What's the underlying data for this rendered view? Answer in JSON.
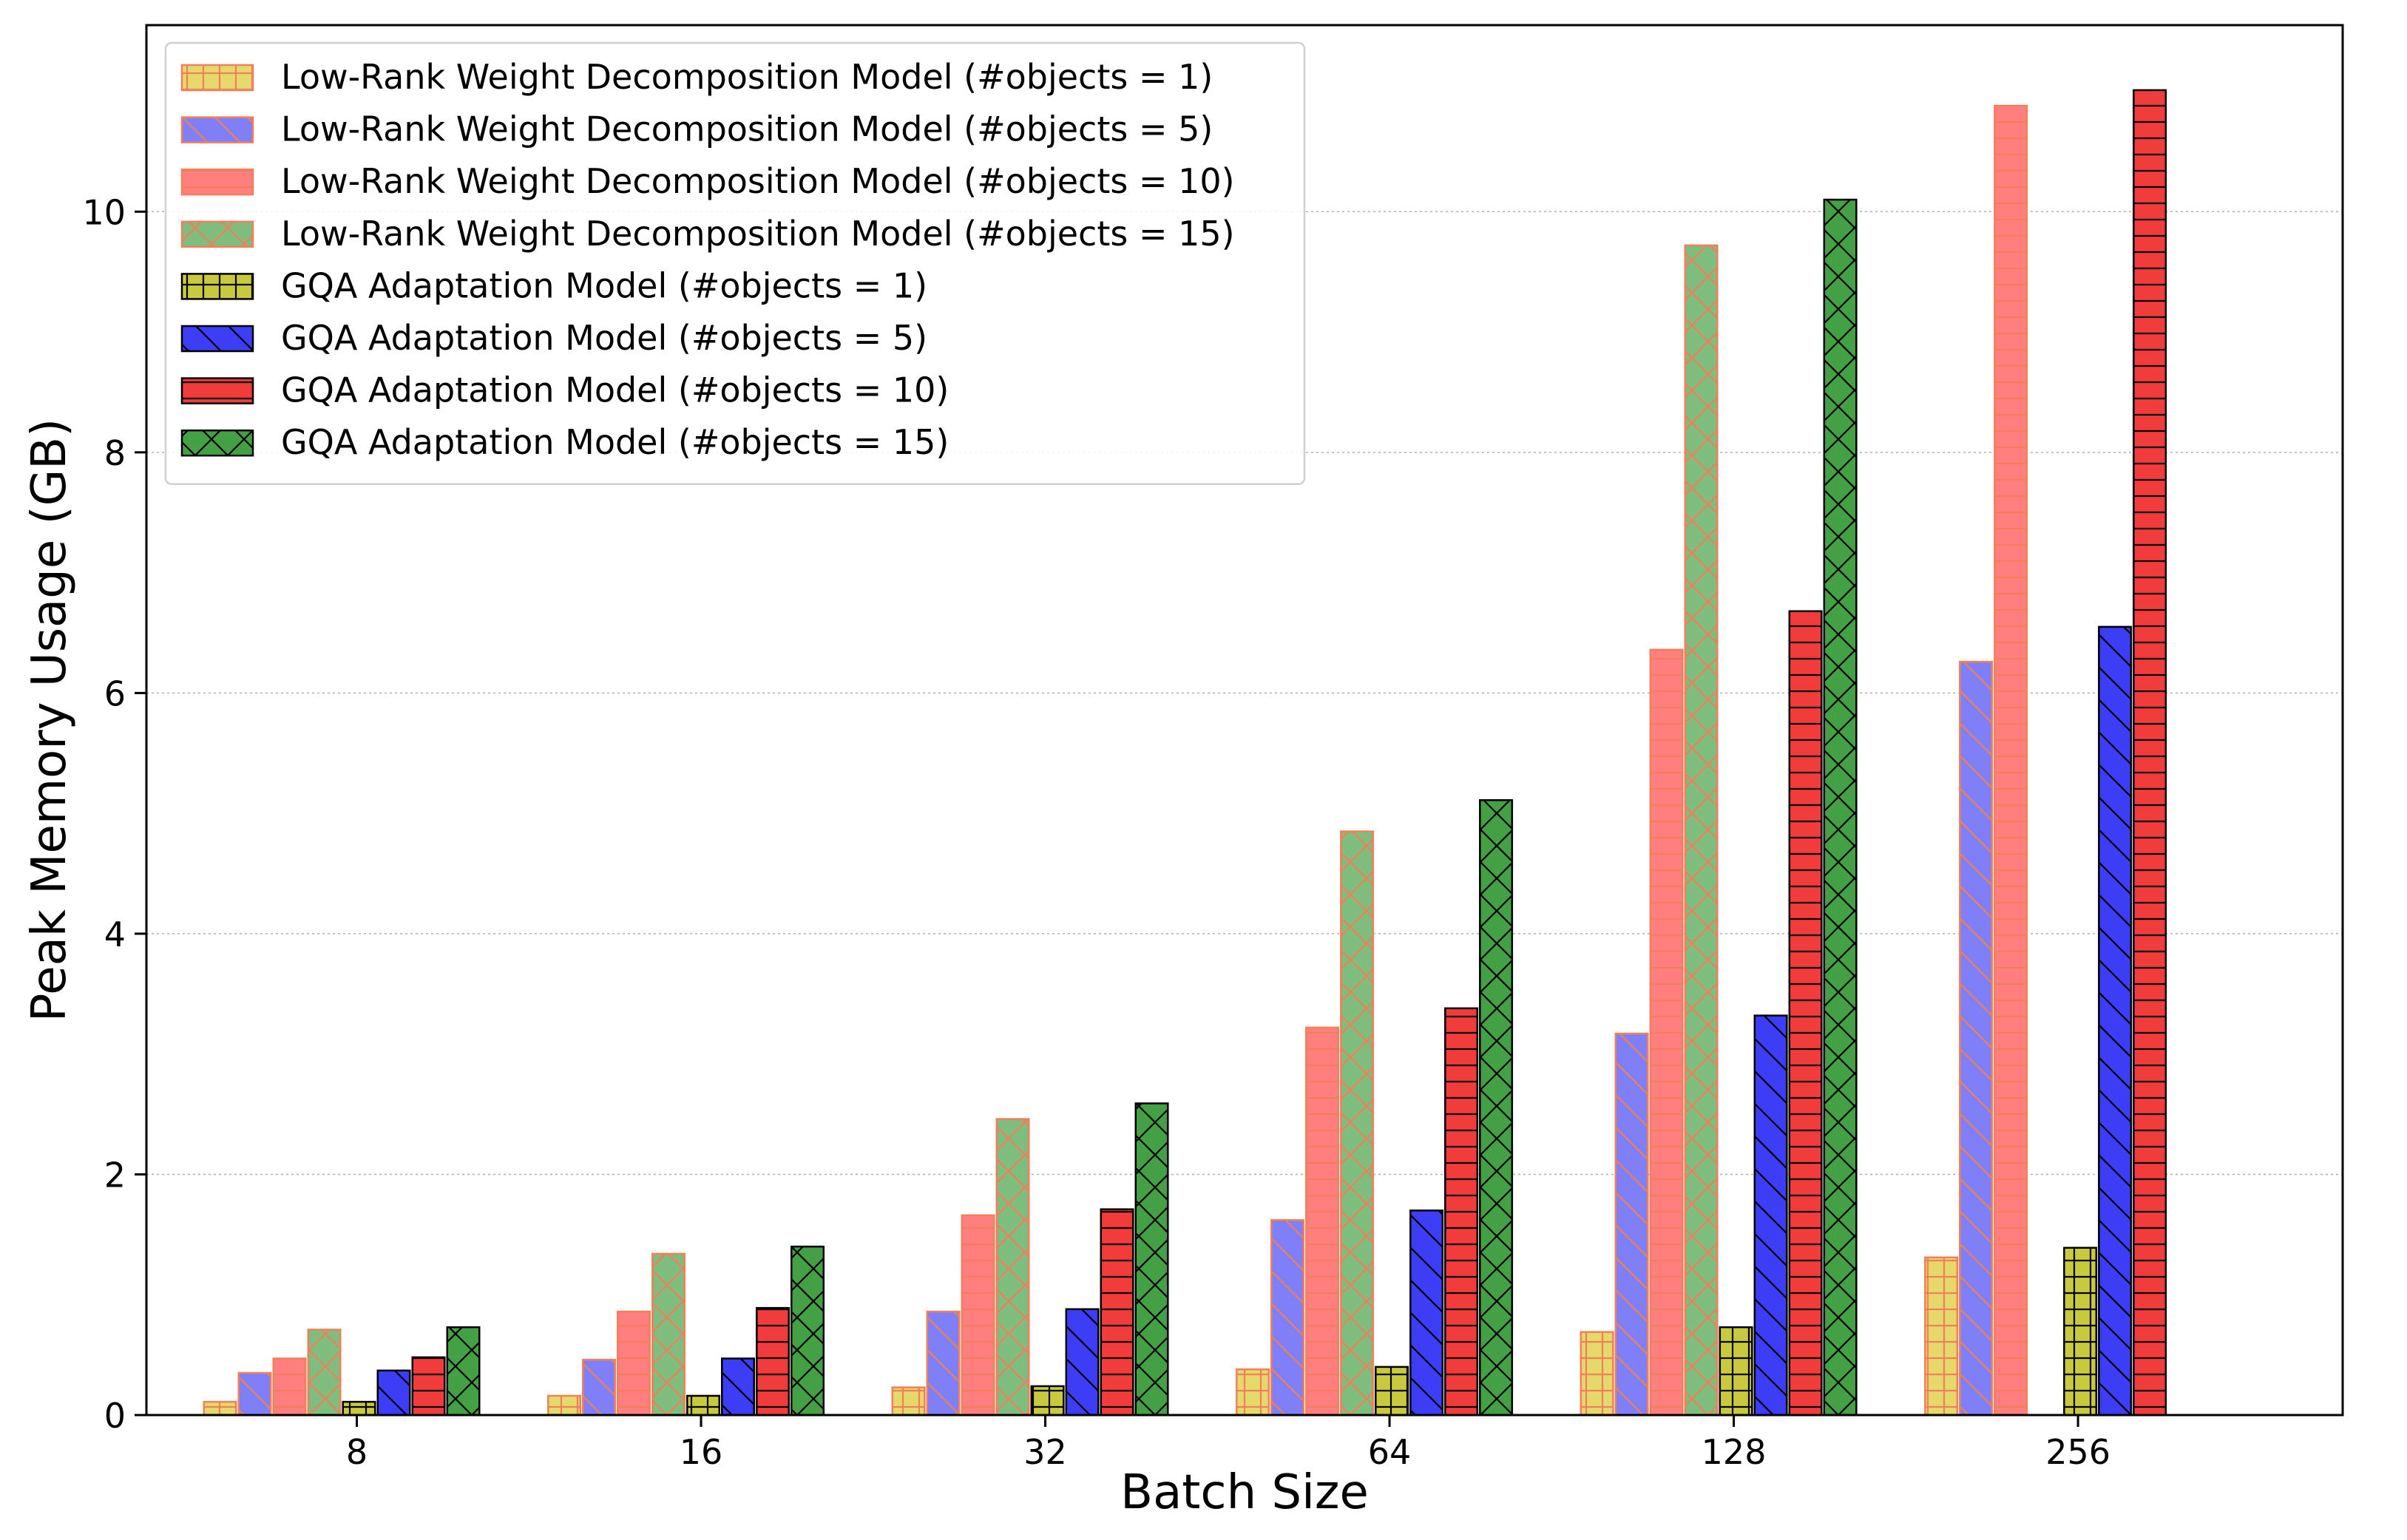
{
  "chart_data": {
    "type": "bar",
    "title": "",
    "xlabel": "Batch Size",
    "ylabel": "Peak Memory Usage (GB)",
    "categories": [
      "8",
      "16",
      "32",
      "64",
      "128",
      "256"
    ],
    "ylim": [
      0,
      11.55
    ],
    "yticks": [
      0,
      2,
      4,
      6,
      8,
      10
    ],
    "ytick_labels": [
      "0",
      "2",
      "4",
      "6",
      "8",
      "10"
    ],
    "grid": "y-dotted",
    "legend_position": "top-left",
    "series": [
      {
        "name": "Low-Rank Weight Decomposition Model (#objects = 1)",
        "color": "#e5d96b",
        "edge": "#f07f5a",
        "hatch": "plus",
        "values": [
          0.11,
          0.16,
          0.23,
          0.38,
          0.69,
          1.31
        ]
      },
      {
        "name": "Low-Rank Weight Decomposition Model (#objects = 5)",
        "color": "#7f7ff7",
        "edge": "#f07f5a",
        "hatch": "backslash",
        "values": [
          0.35,
          0.46,
          0.86,
          1.62,
          3.17,
          6.26
        ]
      },
      {
        "name": "Low-Rank Weight Decomposition Model (#objects = 10)",
        "color": "#ff7f7f",
        "edge": "#f07f5a",
        "hatch": "dash",
        "values": [
          0.47,
          0.86,
          1.66,
          3.22,
          6.36,
          10.88
        ]
      },
      {
        "name": "Low-Rank Weight Decomposition Model (#objects = 15)",
        "color": "#7fbd7f",
        "edge": "#f07f5a",
        "hatch": "cross",
        "values": [
          0.71,
          1.34,
          2.46,
          4.85,
          9.72,
          null
        ]
      },
      {
        "name": "GQA Adaptation Model (#objects = 1)",
        "color": "#c9c93e",
        "edge": "#000000",
        "hatch": "plus",
        "values": [
          0.11,
          0.16,
          0.24,
          0.4,
          0.73,
          1.39
        ]
      },
      {
        "name": "GQA Adaptation Model (#objects = 5)",
        "color": "#3d3df5",
        "edge": "#000000",
        "hatch": "backslash",
        "values": [
          0.37,
          0.47,
          0.88,
          1.7,
          3.32,
          6.55
        ]
      },
      {
        "name": "GQA Adaptation Model (#objects = 10)",
        "color": "#f23b3b",
        "edge": "#000000",
        "hatch": "dash",
        "values": [
          0.48,
          0.89,
          1.71,
          3.38,
          6.68,
          11.01
        ]
      },
      {
        "name": "GQA Adaptation Model (#objects = 15)",
        "color": "#44a044",
        "edge": "#000000",
        "hatch": "cross",
        "values": [
          0.73,
          1.4,
          2.59,
          5.11,
          10.1,
          null
        ]
      }
    ]
  }
}
